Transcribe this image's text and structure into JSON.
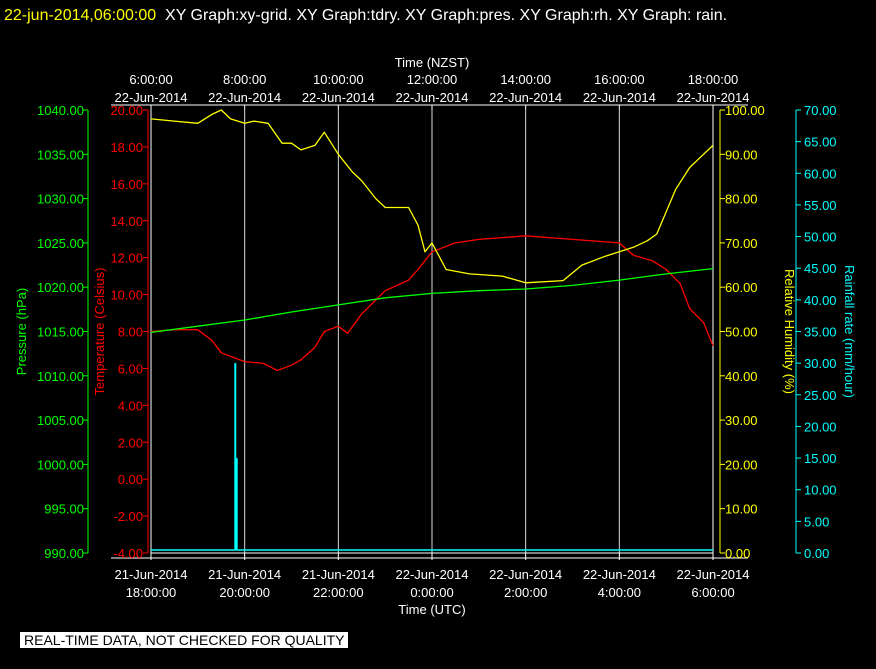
{
  "header": {
    "datetime": "22-jun-2014,06:00:00",
    "graphs": "XY Graph:xy-grid.  XY Graph:tdry.  XY Graph:pres.  XY Graph:rh.  XY Graph: rain."
  },
  "notice": "REAL-TIME DATA, NOT CHECKED FOR QUALITY",
  "colors": {
    "background": "#000000",
    "grid": "#ffffff",
    "temperature": "#ff0000",
    "pressure": "#00ff00",
    "humidity": "#ffff00",
    "rain": "#00ffff",
    "text": "#ffffff"
  },
  "chart_data": {
    "type": "line",
    "top_axis": {
      "label": "Time (NZST)",
      "ticks": [
        {
          "time": "6:00:00",
          "date": "22-Jun-2014"
        },
        {
          "time": "8:00:00",
          "date": "22-Jun-2014"
        },
        {
          "time": "10:00:00",
          "date": "22-Jun-2014"
        },
        {
          "time": "12:00:00",
          "date": "22-Jun-2014"
        },
        {
          "time": "14:00:00",
          "date": "22-Jun-2014"
        },
        {
          "time": "16:00:00",
          "date": "22-Jun-2014"
        },
        {
          "time": "18:00:00",
          "date": "22-Jun-2014"
        }
      ]
    },
    "bottom_axis": {
      "label": "Time (UTC)",
      "ticks": [
        {
          "date": "21-Jun-2014",
          "time": "18:00:00"
        },
        {
          "date": "21-Jun-2014",
          "time": "20:00:00"
        },
        {
          "date": "21-Jun-2014",
          "time": "22:00:00"
        },
        {
          "date": "22-Jun-2014",
          "time": "0:00:00"
        },
        {
          "date": "22-Jun-2014",
          "time": "2:00:00"
        },
        {
          "date": "22-Jun-2014",
          "time": "4:00:00"
        },
        {
          "date": "22-Jun-2014",
          "time": "6:00:00"
        }
      ],
      "range_hours_utc": [
        -6,
        6
      ],
      "gridlines_hours_utc": [
        -4,
        -2,
        0,
        2,
        4
      ]
    },
    "axes": {
      "pressure": {
        "label": "Pressure (hPa)",
        "range": [
          990,
          1040
        ],
        "ticks": [
          "1040.00",
          "1035.00",
          "1030.00",
          "1025.00",
          "1020.00",
          "1015.00",
          "1010.00",
          "1005.00",
          "1000.00",
          "995.00",
          "990.00"
        ]
      },
      "temperature": {
        "label": "Temperature (Celsius)",
        "range": [
          -5,
          20
        ],
        "ticks": [
          "20.00",
          "18.00",
          "16.00",
          "14.00",
          "12.00",
          "10.00",
          "8.00",
          "6.00",
          "4.00",
          "2.00",
          "0.00",
          "-2.00",
          "-4.00"
        ]
      },
      "humidity": {
        "label": "Relative Humidity (%)",
        "range": [
          0,
          100
        ],
        "ticks": [
          "100.00",
          "90.00",
          "80.00",
          "70.00",
          "60.00",
          "50.00",
          "40.00",
          "30.00",
          "20.00",
          "10.00",
          "0.00"
        ]
      },
      "rain": {
        "label": "Rainfall rate (mm/hour)",
        "range": [
          0,
          70
        ],
        "ticks": [
          "70.00",
          "65.00",
          "60.00",
          "55.00",
          "50.00",
          "45.00",
          "40.00",
          "35.00",
          "30.00",
          "25.00",
          "20.00",
          "15.00",
          "10.00",
          "5.00",
          "0.00"
        ]
      }
    },
    "series": [
      {
        "name": "Temperature (Celsius)",
        "axis": "temperature",
        "key": "temperature",
        "x": [
          -6,
          -5.5,
          -5,
          -4.7,
          -4.5,
          -4.2,
          -4,
          -3.6,
          -3.3,
          -3,
          -2.8,
          -2.5,
          -2.3,
          -2,
          -1.8,
          -1.5,
          -1,
          -0.5,
          -0.3,
          0,
          0.5,
          1,
          1.5,
          2,
          2.5,
          3,
          3.5,
          4,
          4.3,
          4.7,
          5,
          5.3,
          5.5,
          5.8,
          6
        ],
        "y": [
          7.5,
          7.6,
          7.6,
          7.0,
          6.3,
          6.0,
          5.8,
          5.7,
          5.3,
          5.6,
          5.9,
          6.6,
          7.5,
          7.8,
          7.4,
          8.5,
          9.8,
          10.4,
          11.0,
          12.0,
          12.5,
          12.7,
          12.8,
          12.9,
          12.8,
          12.7,
          12.6,
          12.5,
          11.8,
          11.5,
          11.0,
          10.2,
          8.8,
          8.0,
          6.7
        ]
      },
      {
        "name": "Pressure (hPa)",
        "axis": "pressure",
        "key": "pressure",
        "x": [
          -6,
          -5,
          -4,
          -3,
          -2,
          -1,
          0,
          1,
          2,
          3,
          4,
          5,
          6
        ],
        "y": [
          1014.9,
          1015.6,
          1016.3,
          1017.2,
          1018.0,
          1018.8,
          1019.3,
          1019.6,
          1019.8,
          1020.2,
          1020.8,
          1021.5,
          1022.1
        ]
      },
      {
        "name": "Relative Humidity (%)",
        "axis": "humidity",
        "key": "humidity",
        "x": [
          -6,
          -5.5,
          -5,
          -4.7,
          -4.5,
          -4.3,
          -4,
          -3.8,
          -3.5,
          -3.2,
          -3,
          -2.8,
          -2.5,
          -2.3,
          -2,
          -1.7,
          -1.5,
          -1.2,
          -1,
          -0.5,
          -0.3,
          -0.15,
          0,
          0.3,
          0.8,
          1.5,
          2,
          2.8,
          3.2,
          3.7,
          4,
          4.3,
          4.6,
          4.8,
          5.2,
          5.5,
          5.7,
          6
        ],
        "y": [
          98,
          97.5,
          97,
          99,
          100,
          98,
          97,
          97.5,
          97,
          92.5,
          92.5,
          91,
          92,
          95,
          90,
          86,
          84,
          80,
          78,
          78,
          74,
          68,
          70,
          64,
          63,
          62.5,
          61,
          61.5,
          65,
          67,
          68,
          69,
          70.5,
          72,
          82,
          87,
          89,
          92
        ]
      },
      {
        "name": "Rainfall rate (mm/hour)",
        "axis": "rain",
        "key": "rain",
        "x": [
          -4.2,
          -4.17
        ],
        "y": [
          30,
          15
        ]
      }
    ]
  }
}
